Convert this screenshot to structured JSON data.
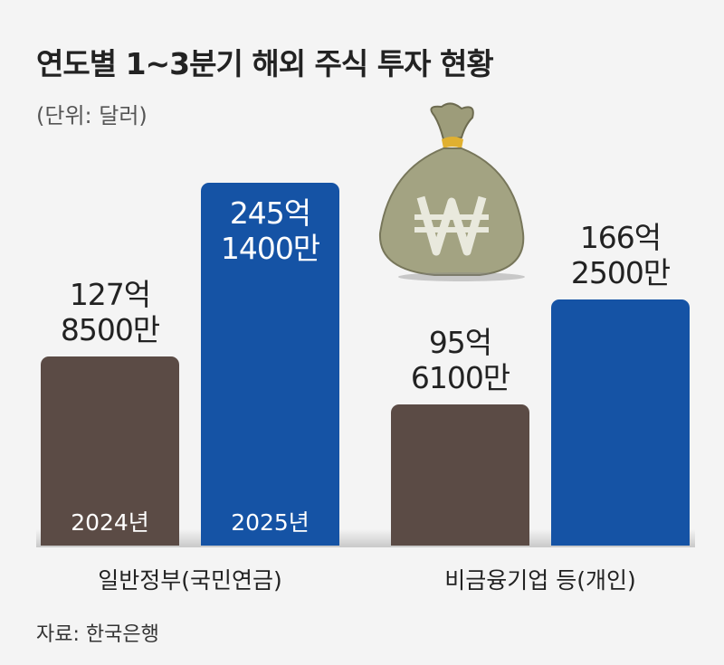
{
  "chart_data": {
    "type": "bar",
    "title": "연도별 1~3분기 해외 주식 투자 현황",
    "subtitle": "(단위: 달러)",
    "source": "자료: 한국은행",
    "categories": [
      "일반정부(국민연금)",
      "비금융기업 등(개인)"
    ],
    "series": [
      {
        "name": "2024년",
        "color": "#5b4b45",
        "values": [
          12785000000,
          9561000000
        ],
        "value_labels": [
          "127억\n8500만",
          "95억\n6100만"
        ]
      },
      {
        "name": "2025년",
        "color": "#1553a5",
        "values": [
          24514000000,
          16625000000
        ],
        "value_labels": [
          "245억\n1400만",
          "166억\n2500만"
        ]
      }
    ]
  }
}
